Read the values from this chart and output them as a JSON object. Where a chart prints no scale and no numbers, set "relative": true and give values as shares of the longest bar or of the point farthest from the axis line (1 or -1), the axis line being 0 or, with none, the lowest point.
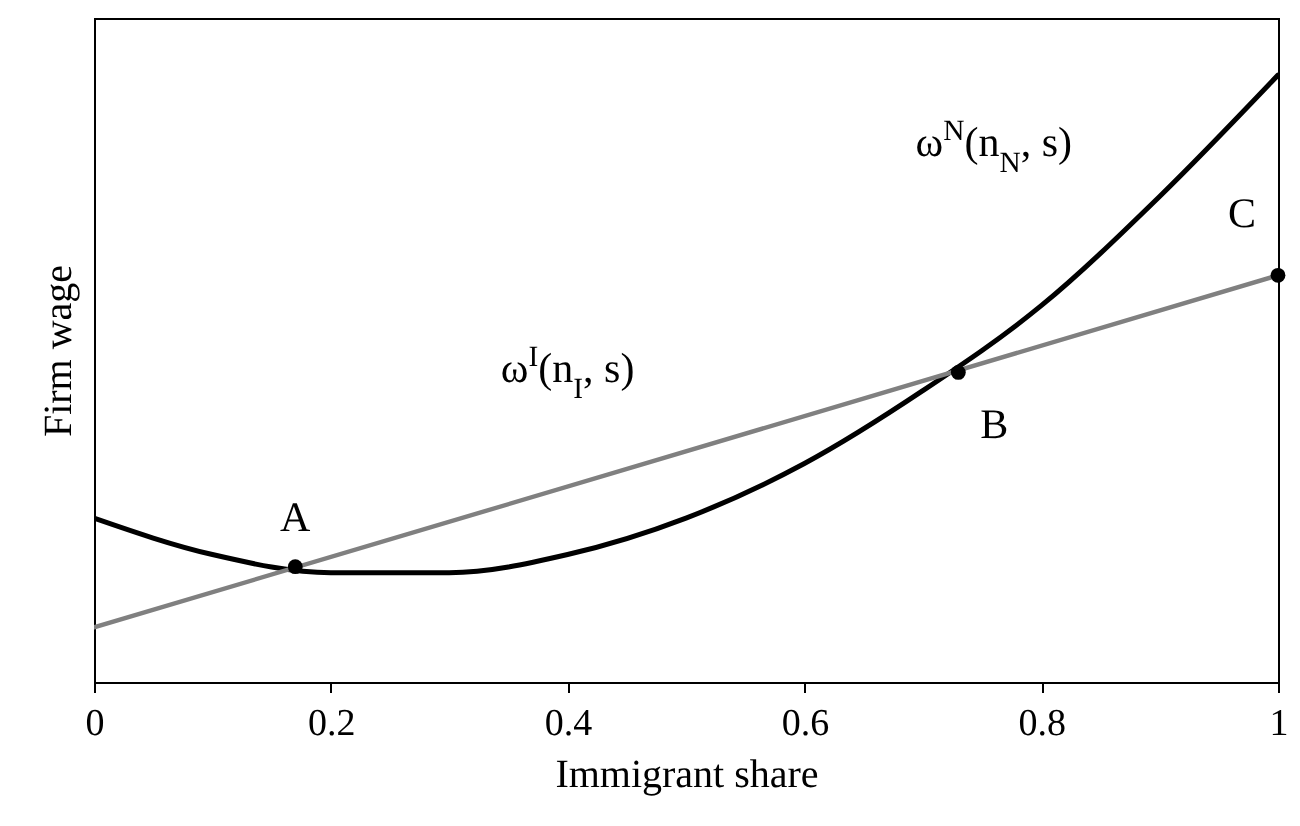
{
  "chart_data": {
    "type": "line",
    "relative": true,
    "xlabel": "Immigrant share",
    "ylabel": "Firm wage",
    "xlim": [
      0,
      1
    ],
    "xticks": [
      0,
      0.2,
      0.4,
      0.6,
      0.8,
      1
    ],
    "grid": false,
    "series": [
      {
        "name": "ω$^{N}$(n$_{N}$, s)",
        "color": "#000000",
        "x": [
          0,
          0.1,
          0.2,
          0.25,
          0.3,
          0.4,
          0.5,
          0.6,
          0.7,
          0.8,
          0.9,
          1
        ],
        "values": [
          0.27,
          0.21,
          0.18,
          0.18,
          0.18,
          0.21,
          0.27,
          0.36,
          0.48,
          0.62,
          0.8,
          1
        ]
      },
      {
        "name": "ω$^{I}$(n$_{I}$, s)",
        "color": "#808080",
        "x": [
          0,
          1
        ],
        "values": [
          0.09,
          0.67
        ]
      },
      {
        "type": "scatter",
        "color": "#000000",
        "x": [
          0.17,
          0.73,
          1
        ],
        "values": [
          0.19,
          0.51,
          0.67
        ]
      }
    ],
    "annotations": [
      {
        "text": "A",
        "x": 0.17,
        "y": 0.19
      },
      {
        "text": "B",
        "x": 0.73,
        "y": 0.51
      },
      {
        "text": "C",
        "x": 1,
        "y": 0.67
      }
    ]
  }
}
